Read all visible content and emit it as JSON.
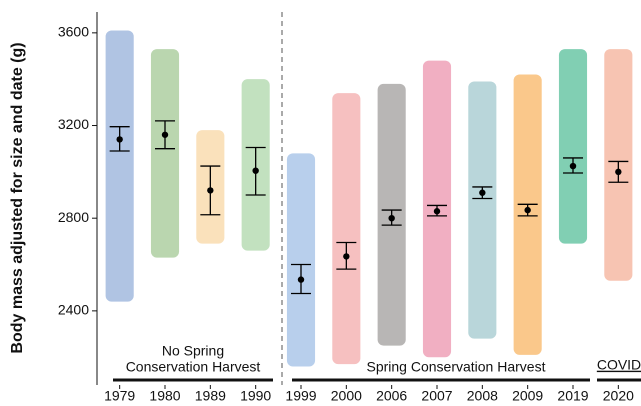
{
  "chart_data": {
    "type": "point_range",
    "y_label": "Body mass adjusted for size and date (g)",
    "categories": [
      "1979",
      "1980",
      "1989",
      "1990",
      "1999",
      "2000",
      "2006",
      "2007",
      "2008",
      "2009",
      "2019",
      "2020"
    ],
    "colors": [
      "#6f93cc",
      "#82b56e",
      "#f6c884",
      "#8fc98b",
      "#7ea8dc",
      "#ef8d8d",
      "#7d7a78",
      "#e66d90",
      "#7fb4bb",
      "#f59a2c",
      "#1aa874",
      "#f09472"
    ],
    "values": [
      3140,
      3160,
      2920,
      3005,
      2535,
      2635,
      2800,
      2830,
      2910,
      2835,
      3025,
      3000
    ],
    "lower": [
      3090,
      3100,
      2815,
      2900,
      2475,
      2580,
      2770,
      2810,
      2885,
      2810,
      2995,
      2955
    ],
    "upper": [
      3195,
      3220,
      3025,
      3105,
      2600,
      2695,
      2835,
      2855,
      2935,
      2860,
      3060,
      3045
    ],
    "spread_low": [
      2440,
      2630,
      2690,
      2660,
      2160,
      2170,
      2250,
      2200,
      2280,
      2210,
      2690,
      2530
    ],
    "spread_high": [
      3610,
      3530,
      3180,
      3400,
      3080,
      3340,
      3380,
      3480,
      3390,
      3420,
      3530,
      3530
    ],
    "ylim": [
      2080,
      3690
    ],
    "yticks": [
      2400,
      2800,
      3200,
      3600
    ],
    "annotations": [
      "No Spring",
      "Conservation Harvest",
      "Spring Conservation Harvest",
      "COVID"
    ]
  }
}
